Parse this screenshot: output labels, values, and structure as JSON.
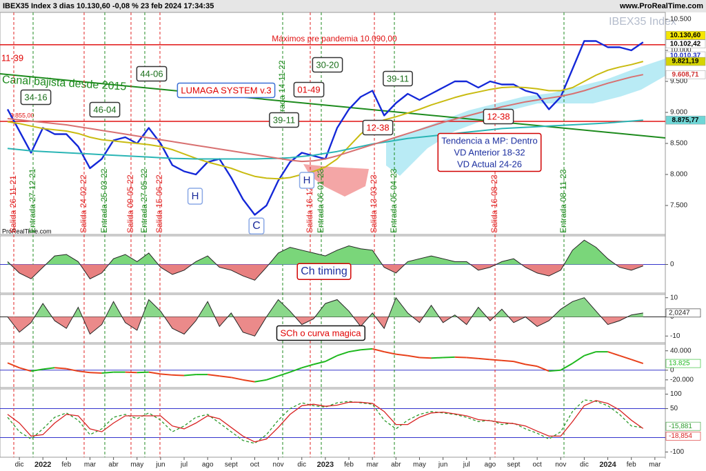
{
  "chart_data": [
    {
      "type": "line",
      "title": "IBEX35 Index 3 dias 10.130,60 -0,08 % 23 feb 2024 17:34:35",
      "source": "www.ProRealTime.com",
      "watermark": "IBEX35 Index",
      "footer_source": "ProRealTime.com",
      "categories": [
        null,
        "dic",
        null,
        "2022",
        null,
        "feb",
        null,
        "mar",
        null,
        "abr",
        null,
        "may",
        null,
        "jun",
        null,
        "jul",
        null,
        "ago",
        null,
        "sept",
        null,
        "oct",
        null,
        "nov",
        null,
        "dic",
        null,
        "2023",
        null,
        "feb",
        null,
        "mar",
        null,
        "abr",
        null,
        "may",
        null,
        "jun",
        null,
        "jul",
        null,
        "ago",
        null,
        "sept",
        null,
        "oct",
        null,
        "nov",
        null,
        "dic",
        null,
        "2024",
        null,
        "feb",
        null,
        "mar",
        null
      ],
      "series": [
        {
          "color": "#1428d8",
          "values": [
            9050,
            8700,
            8350,
            8750,
            8650,
            8650,
            8450,
            8100,
            8250,
            8550,
            8600,
            8500,
            8750,
            8500,
            8150,
            8050,
            8000,
            8200,
            8250,
            7950,
            7600,
            7350,
            7500,
            7900,
            8200,
            8350,
            8300,
            8250,
            8750,
            9050,
            9250,
            9350,
            8950,
            9150,
            9300,
            9200,
            9300,
            9400,
            9500,
            9500,
            9400,
            9500,
            9450,
            9450,
            9350,
            9300,
            9050,
            9250,
            9700,
            10150,
            10150,
            10050,
            10050,
            10000,
            10130.6,
            null,
            null
          ]
        },
        {
          "color": "#c9bb10",
          "values": [
            8850,
            8820,
            8780,
            8740,
            8720,
            8700,
            8660,
            8600,
            8560,
            8540,
            8520,
            8500,
            8480,
            8450,
            8400,
            8330,
            8260,
            8200,
            8150,
            8100,
            8030,
            7970,
            7940,
            7930,
            7950,
            8000,
            8050,
            8120,
            8250,
            8450,
            8650,
            8800,
            8880,
            8930,
            8990,
            9050,
            9120,
            9180,
            9240,
            9290,
            9330,
            9370,
            9400,
            9410,
            9400,
            9380,
            9350,
            9350,
            9400,
            9500,
            9600,
            9680,
            9730,
            9770,
            9821.19,
            null,
            null
          ]
        },
        {
          "color": "#2ab5b5",
          "values": [
            8420,
            8400,
            8380,
            8370,
            8360,
            8350,
            8340,
            8330,
            8320,
            8310,
            8300,
            8290,
            8280,
            8270,
            8260,
            8255,
            8250,
            8250,
            8250,
            8250,
            8250,
            8250,
            8255,
            8260,
            8270,
            8290,
            8310,
            8340,
            8370,
            8410,
            8450,
            8490,
            8520,
            8550,
            8580,
            8600,
            8620,
            8640,
            8660,
            8680,
            8700,
            8720,
            8740,
            8750,
            8760,
            8770,
            8780,
            8790,
            8800,
            8810,
            8820,
            8830,
            8845,
            8860,
            8875.77,
            null,
            null
          ]
        },
        {
          "color": "#d87070",
          "values": [
            8900,
            8880,
            8860,
            8840,
            8820,
            8800,
            8770,
            8740,
            8710,
            8680,
            8650,
            8620,
            8590,
            8560,
            8530,
            8500,
            8470,
            8440,
            8410,
            8380,
            8350,
            8320,
            8290,
            8260,
            8230,
            8210,
            8220,
            8250,
            8300,
            8360,
            8420,
            8480,
            8540,
            8600,
            8660,
            8720,
            8780,
            8840,
            8890,
            8940,
            8990,
            9040,
            9090,
            9130,
            9170,
            9200,
            9230,
            9260,
            9300,
            9350,
            9410,
            9470,
            9520,
            9570,
            9608.71,
            null,
            null
          ]
        }
      ],
      "ylim": [
        7033,
        10611
      ],
      "yticks": [
        {
          "value": 7500,
          "label": "7.500"
        },
        {
          "value": 8000,
          "label": "8.000"
        },
        {
          "value": 8500,
          "label": "8.500"
        },
        {
          "value": 9000,
          "label": "9.000"
        },
        {
          "value": 9500,
          "label": "9.500"
        },
        {
          "value": 10000,
          "label": "10.000"
        },
        {
          "value": 10500,
          "label": "10.500"
        }
      ],
      "price_labels": [
        {
          "value": 10130.6,
          "label": "10.130,60",
          "color": "#000000",
          "background": "#f5e600"
        },
        {
          "value": 10102.42,
          "label": "10.102,42",
          "color": "#000000",
          "background": "#ffffff"
        },
        {
          "value": 10010.37,
          "label": "10.010,37",
          "color": "#2030c0",
          "background": "#ffffff"
        },
        {
          "value": 9821.19,
          "label": "9.821,19",
          "color": "#000000",
          "background": "#d6d400"
        },
        {
          "value": 9608.71,
          "label": "9.608,71",
          "color": "#d03030",
          "background": "#ffffff"
        },
        {
          "value": 8875.77,
          "label": "8.875,77",
          "color": "#000000",
          "background": "#6fd6d6"
        }
      ],
      "hlines": [
        {
          "value": 10090,
          "label": "Máximos pre pandemia 10.090,00",
          "color": "#e01010"
        },
        {
          "value": 8855,
          "label": "8.855,00",
          "color": "#e01010"
        }
      ],
      "trendline": {
        "label": "Canal bajista desde 2015",
        "start": 9622,
        "end": 8589,
        "color": "#1c8a1c"
      },
      "signals": [
        {
          "label": "Salida 26-11-21",
          "color": "#e02020"
        },
        {
          "label": "Entrada 27-12-21",
          "color": "#1c8a1c"
        },
        {
          "label": "Salida 24-02-22",
          "color": "#e02020"
        },
        {
          "label": "Entrada 25-03-22",
          "color": "#1c8a1c"
        },
        {
          "label": "Salida 09-05-22",
          "color": "#e02020"
        },
        {
          "label": "Entrada 27-05-22",
          "color": "#1c8a1c"
        },
        {
          "label": "Salida 15-06-22",
          "color": "#e02020"
        },
        {
          "label": "Entrada 14-11-22",
          "color": "#1c8a1c"
        },
        {
          "label": "Salida 16-12-22",
          "color": "#e02020"
        },
        {
          "label": "Entrada 06-01-23",
          "color": "#1c8a1c"
        },
        {
          "label": "Salida 13-03-23",
          "color": "#e02020"
        },
        {
          "label": "Entrada 05-04-23",
          "color": "#1c8a1c"
        },
        {
          "label": "Salida 16-08-23",
          "color": "#e02020"
        },
        {
          "label": "Entrada 08-11-23",
          "color": "#1c8a1c"
        }
      ],
      "annotations": [
        {
          "lines": [
            "11-39"
          ],
          "color": "#e00000"
        },
        {
          "lines": [
            "34-16"
          ],
          "color": "#1a6e1a",
          "border": "#333333"
        },
        {
          "lines": [
            "46-04"
          ],
          "color": "#1a6e1a",
          "border": "#333333"
        },
        {
          "lines": [
            "44-06"
          ],
          "color": "#1a6e1a",
          "border": "#333333"
        },
        {
          "lines": [
            "LUMAGA SYSTEM v.3"
          ],
          "color": "#e00000",
          "border": "#3b6fd6"
        },
        {
          "lines": [
            "01-49"
          ],
          "color": "#e00000",
          "border": "#333333"
        },
        {
          "lines": [
            "30-20"
          ],
          "color": "#1a6e1a",
          "border": "#333333"
        },
        {
          "lines": [
            "39-11"
          ],
          "color": "#1a6e1a",
          "border": "#333333"
        },
        {
          "lines": [
            "39-11"
          ],
          "color": "#1a6e1a",
          "border": "#333333"
        },
        {
          "lines": [
            "12-38"
          ],
          "color": "#e00000",
          "border": "#333333"
        },
        {
          "lines": [
            "12-38"
          ],
          "color": "#e00000",
          "border": "#333333"
        },
        {
          "lines": [
            "Tendencia a MP: Dentro",
            "VD Anterior 18-32",
            "VD Actual 24-26"
          ],
          "color": "#1c2fa0",
          "border": "#d00000"
        },
        {
          "lines": [
            "H"
          ],
          "color": "#1a2a9a",
          "border": "#8aa8e6"
        },
        {
          "lines": [
            "H"
          ],
          "color": "#1a2a9a",
          "border": "#8aa8e6"
        },
        {
          "lines": [
            "C"
          ],
          "color": "#1a2a9a",
          "border": "#8aa8e6"
        }
      ]
    },
    {
      "type": "area",
      "annotation": {
        "lines": [
          "Ch timing"
        ],
        "color": "#1c2fa0",
        "border": "#d00000"
      },
      "series": [
        {
          "color": "#222222",
          "positive_color": "#7ad67a",
          "negative_color": "#e88080",
          "values": [
            0.1,
            -0.3,
            -0.5,
            -0.1,
            0.3,
            0.35,
            0.1,
            -0.5,
            -0.3,
            0.2,
            0.35,
            0.1,
            0.4,
            -0.1,
            -0.35,
            -0.2,
            0.1,
            0.3,
            -0.1,
            -0.2,
            -0.4,
            -0.55,
            -0.1,
            0.4,
            0.6,
            0.5,
            0.4,
            0.3,
            0.5,
            0.65,
            0.55,
            0.5,
            -0.1,
            -0.3,
            0.1,
            0.2,
            0.3,
            0.2,
            0.1,
            0.1,
            -0.2,
            -0.1,
            0.1,
            0.2,
            -0.1,
            -0.3,
            -0.4,
            -0.2,
            0.5,
            0.85,
            0.6,
            0.2,
            -0.1,
            -0.2,
            -0.05,
            null,
            null
          ]
        }
      ],
      "ylim": [
        -1,
        1
      ],
      "yticks": [
        0
      ],
      "reference_lines": [
        0
      ],
      "reference_color": "#3333cc"
    },
    {
      "type": "area",
      "annotation": {
        "lines": [
          "SCh o curva magica"
        ],
        "color": "#e00000",
        "border": "#111111"
      },
      "series": [
        {
          "color": "#222222",
          "positive_color": "#8ad88a",
          "negative_color": "#eb8a8a",
          "last_label": "2,0247",
          "values": [
            0,
            -8,
            -3,
            7,
            -2,
            -6,
            5,
            -9,
            -4,
            8,
            -3,
            -7,
            9,
            3,
            -6,
            -9,
            -2,
            8,
            -5,
            2,
            -8,
            -10,
            0,
            9,
            3,
            -4,
            -1,
            7,
            9,
            3,
            -5,
            2,
            -6,
            10,
            2,
            -3,
            6,
            -3,
            1,
            -4,
            5,
            -2,
            4,
            -3,
            0,
            -5,
            -2,
            4,
            8,
            10,
            3,
            -4,
            -2,
            1,
            2.0247,
            null,
            null
          ]
        }
      ],
      "ylim": [
        -13.5,
        11.7
      ],
      "yticks": [
        10,
        0,
        -10
      ],
      "reference_lines": [
        0
      ],
      "reference_color": "#222222"
    },
    {
      "type": "line",
      "series": [
        {
          "rising_color": "#1db81d",
          "falling_color": "#e8401a",
          "last_label": "13.825",
          "values": [
            15000,
            5000,
            -2000,
            2000,
            5000,
            3000,
            -2000,
            -5000,
            -6000,
            -4000,
            -4000,
            -5000,
            -4000,
            -8000,
            -10000,
            -11000,
            -9000,
            -9000,
            -12000,
            -15000,
            -20000,
            -24000,
            -20000,
            -12000,
            -4000,
            5000,
            12000,
            18000,
            30000,
            38000,
            42000,
            44000,
            38000,
            33000,
            30000,
            26000,
            25000,
            26000,
            27000,
            26000,
            24000,
            22000,
            20000,
            18000,
            12000,
            8000,
            -2000,
            0,
            14000,
            30000,
            38000,
            38000,
            30000,
            22000,
            13825,
            null,
            null
          ]
        }
      ],
      "ylim": [
        -35900,
        53800
      ],
      "yticks": [
        {
          "value": 40000,
          "label": "40.000"
        },
        0,
        {
          "value": -20000,
          "label": "-20.000"
        }
      ],
      "reference_lines": [
        0
      ],
      "reference_color": "#3333cc"
    },
    {
      "type": "line",
      "series": [
        {
          "color": "#2a9a2a",
          "dashed": true,
          "last_label": "-15,881",
          "values": [
            20,
            -30,
            -55,
            -20,
            20,
            35,
            10,
            -40,
            -20,
            20,
            30,
            15,
            35,
            10,
            -30,
            -10,
            20,
            30,
            0,
            -30,
            -60,
            -70,
            -40,
            10,
            50,
            70,
            60,
            55,
            70,
            75,
            70,
            65,
            10,
            -20,
            10,
            30,
            40,
            35,
            30,
            20,
            5,
            10,
            -5,
            0,
            -20,
            -35,
            -55,
            -30,
            40,
            80,
            75,
            60,
            30,
            -10,
            -15.881,
            null,
            null
          ]
        },
        {
          "color": "#d82020",
          "dashed": false,
          "last_label": "-18,854",
          "values": [
            30,
            0,
            -45,
            -40,
            0,
            30,
            25,
            -20,
            -30,
            0,
            25,
            25,
            25,
            25,
            -10,
            -20,
            0,
            25,
            15,
            -15,
            -45,
            -65,
            -55,
            -15,
            30,
            60,
            65,
            58,
            62,
            72,
            72,
            68,
            40,
            -5,
            -5,
            20,
            35,
            38,
            32,
            25,
            12,
            8,
            2,
            -2,
            -10,
            -28,
            -45,
            -45,
            5,
            60,
            78,
            68,
            45,
            10,
            -18.854,
            null,
            null
          ]
        }
      ],
      "ylim": [
        -118,
        118
      ],
      "yticks": [
        100,
        50,
        -100
      ],
      "reference_lines": [
        50,
        -50
      ],
      "reference_color": "#3333cc"
    }
  ]
}
